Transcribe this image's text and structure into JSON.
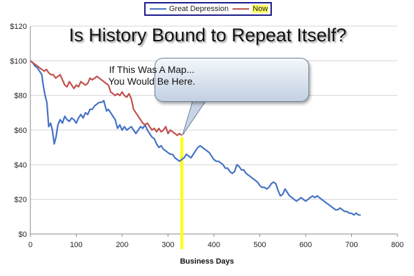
{
  "chart_data": {
    "type": "line",
    "title": "Is History Bound to Repeat Itself?",
    "xlabel": "Business Days",
    "ylabel": "",
    "xlim": [
      0,
      800
    ],
    "ylim": [
      0,
      120
    ],
    "x_ticks": [
      "0",
      "100",
      "200",
      "300",
      "400",
      "500",
      "600",
      "700",
      "800"
    ],
    "y_ticks": [
      "$0",
      "$20",
      "$40",
      "$60",
      "$80",
      "$100",
      "$120"
    ],
    "grid": "horizontal",
    "legend_position": "top-center",
    "series": [
      {
        "name": "Great Depression",
        "color": "#4472c4",
        "points": [
          [
            0,
            100
          ],
          [
            5,
            99
          ],
          [
            10,
            97
          ],
          [
            15,
            96
          ],
          [
            20,
            94
          ],
          [
            25,
            92
          ],
          [
            28,
            86
          ],
          [
            32,
            80
          ],
          [
            36,
            76
          ],
          [
            40,
            62
          ],
          [
            44,
            64
          ],
          [
            48,
            60
          ],
          [
            52,
            52
          ],
          [
            56,
            56
          ],
          [
            60,
            63
          ],
          [
            65,
            66
          ],
          [
            70,
            64
          ],
          [
            75,
            68
          ],
          [
            80,
            66
          ],
          [
            85,
            65
          ],
          [
            90,
            67
          ],
          [
            95,
            66
          ],
          [
            100,
            64
          ],
          [
            105,
            67
          ],
          [
            110,
            69
          ],
          [
            115,
            67
          ],
          [
            120,
            70
          ],
          [
            125,
            69
          ],
          [
            130,
            72
          ],
          [
            135,
            72
          ],
          [
            140,
            74
          ],
          [
            145,
            75
          ],
          [
            150,
            76
          ],
          [
            155,
            76
          ],
          [
            160,
            77
          ],
          [
            163,
            74
          ],
          [
            166,
            71
          ],
          [
            170,
            72
          ],
          [
            175,
            70
          ],
          [
            180,
            68
          ],
          [
            185,
            66
          ],
          [
            190,
            61
          ],
          [
            195,
            63
          ],
          [
            200,
            60
          ],
          [
            205,
            62
          ],
          [
            210,
            60
          ],
          [
            215,
            61
          ],
          [
            220,
            62
          ],
          [
            225,
            60
          ],
          [
            230,
            58
          ],
          [
            235,
            60
          ],
          [
            240,
            62
          ],
          [
            245,
            61
          ],
          [
            250,
            63
          ],
          [
            255,
            60
          ],
          [
            260,
            58
          ],
          [
            265,
            56
          ],
          [
            270,
            55
          ],
          [
            275,
            52
          ],
          [
            280,
            50
          ],
          [
            285,
            51
          ],
          [
            290,
            49
          ],
          [
            295,
            48
          ],
          [
            300,
            47
          ],
          [
            305,
            46
          ],
          [
            310,
            46
          ],
          [
            315,
            44
          ],
          [
            320,
            43
          ],
          [
            325,
            42
          ],
          [
            330,
            43
          ],
          [
            335,
            44
          ],
          [
            340,
            46
          ],
          [
            345,
            45
          ],
          [
            350,
            44
          ],
          [
            355,
            46
          ],
          [
            360,
            48
          ],
          [
            365,
            50
          ],
          [
            370,
            51
          ],
          [
            375,
            50
          ],
          [
            380,
            49
          ],
          [
            385,
            48
          ],
          [
            390,
            47
          ],
          [
            395,
            45
          ],
          [
            400,
            43
          ],
          [
            405,
            42
          ],
          [
            410,
            42
          ],
          [
            415,
            41
          ],
          [
            420,
            40
          ],
          [
            425,
            38
          ],
          [
            430,
            38
          ],
          [
            435,
            36
          ],
          [
            440,
            35
          ],
          [
            445,
            36
          ],
          [
            450,
            40
          ],
          [
            455,
            39
          ],
          [
            460,
            37
          ],
          [
            465,
            37
          ],
          [
            470,
            35
          ],
          [
            475,
            34
          ],
          [
            480,
            33
          ],
          [
            485,
            32
          ],
          [
            490,
            31
          ],
          [
            495,
            30
          ],
          [
            500,
            28
          ],
          [
            505,
            27
          ],
          [
            510,
            27
          ],
          [
            515,
            26
          ],
          [
            520,
            27
          ],
          [
            525,
            29
          ],
          [
            530,
            30
          ],
          [
            535,
            29
          ],
          [
            540,
            25
          ],
          [
            545,
            22
          ],
          [
            550,
            23
          ],
          [
            555,
            26
          ],
          [
            560,
            24
          ],
          [
            565,
            22
          ],
          [
            570,
            21
          ],
          [
            575,
            20
          ],
          [
            580,
            19
          ],
          [
            585,
            20
          ],
          [
            590,
            21
          ],
          [
            595,
            20
          ],
          [
            600,
            19
          ],
          [
            605,
            20
          ],
          [
            610,
            21
          ],
          [
            615,
            22
          ],
          [
            620,
            21
          ],
          [
            625,
            22
          ],
          [
            630,
            21
          ],
          [
            635,
            20
          ],
          [
            640,
            19
          ],
          [
            645,
            18
          ],
          [
            650,
            17
          ],
          [
            655,
            16
          ],
          [
            660,
            15
          ],
          [
            665,
            14
          ],
          [
            670,
            14
          ],
          [
            675,
            15
          ],
          [
            680,
            14
          ],
          [
            685,
            13
          ],
          [
            690,
            13
          ],
          [
            695,
            12
          ],
          [
            700,
            12
          ],
          [
            705,
            11
          ],
          [
            710,
            12
          ],
          [
            715,
            11
          ],
          [
            720,
            11
          ]
        ]
      },
      {
        "name": "Now",
        "color": "#c0504d",
        "points": [
          [
            0,
            100
          ],
          [
            5,
            99
          ],
          [
            10,
            98
          ],
          [
            15,
            97
          ],
          [
            20,
            96
          ],
          [
            25,
            95
          ],
          [
            30,
            94
          ],
          [
            35,
            95
          ],
          [
            40,
            93
          ],
          [
            45,
            92
          ],
          [
            50,
            92
          ],
          [
            55,
            90
          ],
          [
            60,
            91
          ],
          [
            65,
            92
          ],
          [
            70,
            89
          ],
          [
            75,
            86
          ],
          [
            80,
            85
          ],
          [
            85,
            88
          ],
          [
            90,
            86
          ],
          [
            95,
            84
          ],
          [
            100,
            86
          ],
          [
            105,
            85
          ],
          [
            110,
            88
          ],
          [
            115,
            87
          ],
          [
            120,
            86
          ],
          [
            125,
            87
          ],
          [
            130,
            90
          ],
          [
            135,
            89
          ],
          [
            140,
            90
          ],
          [
            145,
            91
          ],
          [
            150,
            90
          ],
          [
            155,
            89
          ],
          [
            160,
            88
          ],
          [
            165,
            87
          ],
          [
            170,
            86
          ],
          [
            175,
            82
          ],
          [
            180,
            81
          ],
          [
            185,
            80
          ],
          [
            190,
            81
          ],
          [
            195,
            80
          ],
          [
            200,
            82
          ],
          [
            205,
            80
          ],
          [
            210,
            79
          ],
          [
            215,
            81
          ],
          [
            220,
            78
          ],
          [
            225,
            72
          ],
          [
            230,
            70
          ],
          [
            235,
            68
          ],
          [
            240,
            66
          ],
          [
            245,
            64
          ],
          [
            250,
            63
          ],
          [
            255,
            64
          ],
          [
            260,
            62
          ],
          [
            265,
            60
          ],
          [
            270,
            61
          ],
          [
            275,
            59
          ],
          [
            280,
            61
          ],
          [
            285,
            59
          ],
          [
            290,
            60
          ],
          [
            295,
            62
          ],
          [
            300,
            58
          ],
          [
            305,
            60
          ],
          [
            310,
            59
          ],
          [
            315,
            58
          ],
          [
            320,
            57
          ],
          [
            325,
            58
          ],
          [
            330,
            57
          ]
        ]
      }
    ],
    "annotations": [
      {
        "text_lines": [
          "If This Was A Map...",
          "You Would Be Here."
        ],
        "marker_x": 330,
        "marker_color": "#ffff00"
      }
    ]
  }
}
